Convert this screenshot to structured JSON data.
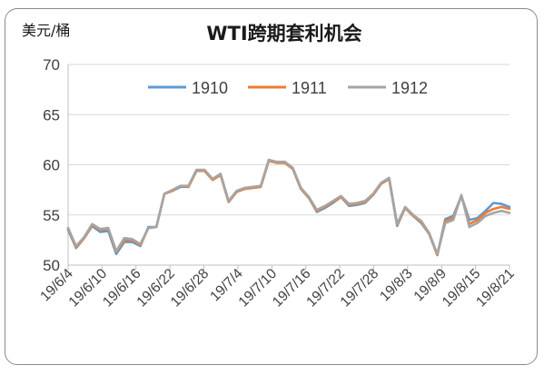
{
  "chart_data": {
    "type": "line",
    "title": "WTI跨期套利机会",
    "unit_label": "美元/桶",
    "xlabel": "",
    "ylabel": "",
    "ylim": [
      50,
      70
    ],
    "y_ticks": [
      "50",
      "55",
      "60",
      "65",
      "70"
    ],
    "grid": "horizontal",
    "legend_position": "top-center",
    "x_tick_labels": [
      "19/6/4",
      "19/6/10",
      "19/6/16",
      "19/6/22",
      "19/6/28",
      "19/7/4",
      "19/7/10",
      "19/7/16",
      "19/7/22",
      "19/7/28",
      "19/8/3",
      "19/8/9",
      "19/8/15",
      "19/8/21"
    ],
    "x": [
      "19/6/4",
      "19/6/5",
      "19/6/6",
      "19/6/7",
      "19/6/10",
      "19/6/11",
      "19/6/12",
      "19/6/13",
      "19/6/14",
      "19/6/17",
      "19/6/18",
      "19/6/19",
      "19/6/20",
      "19/6/21",
      "19/6/24",
      "19/6/25",
      "19/6/26",
      "19/6/27",
      "19/6/28",
      "19/7/1",
      "19/7/2",
      "19/7/3",
      "19/7/5",
      "19/7/8",
      "19/7/9",
      "19/7/10",
      "19/7/11",
      "19/7/12",
      "19/7/15",
      "19/7/16",
      "19/7/17",
      "19/7/18",
      "19/7/19",
      "19/7/22",
      "19/7/23",
      "19/7/24",
      "19/7/25",
      "19/7/26",
      "19/7/29",
      "19/7/30",
      "19/7/31",
      "19/8/1",
      "19/8/2",
      "19/8/5",
      "19/8/6",
      "19/8/7",
      "19/8/8",
      "19/8/9",
      "19/8/12",
      "19/8/13",
      "19/8/14",
      "19/8/15",
      "19/8/16",
      "19/8/19",
      "19/8/20",
      "19/8/21"
    ],
    "series": [
      {
        "name": "1910",
        "color": "#5b9bd5",
        "values": [
          53.5,
          51.7,
          52.7,
          53.9,
          53.3,
          53.4,
          51.1,
          52.3,
          52.3,
          51.9,
          53.8,
          53.8,
          57.1,
          57.4,
          57.8,
          57.8,
          59.4,
          59.4,
          58.5,
          59.0,
          56.3,
          57.3,
          57.6,
          57.7,
          57.8,
          60.4,
          60.2,
          60.2,
          59.6,
          57.6,
          56.7,
          55.3,
          55.7,
          56.2,
          56.8,
          55.9,
          56.0,
          56.2,
          57.0,
          58.1,
          58.6,
          53.9,
          55.7,
          54.9,
          54.2,
          53.1,
          51.0,
          54.6,
          54.9,
          56.9,
          54.5,
          54.7,
          55.4,
          56.2,
          56.1,
          55.8
        ]
      },
      {
        "name": "1911",
        "color": "#ed7d31",
        "values": [
          53.6,
          51.8,
          52.7,
          54.0,
          53.5,
          53.6,
          51.3,
          52.5,
          52.5,
          52.0,
          53.7,
          53.8,
          57.1,
          57.4,
          57.9,
          57.8,
          59.4,
          59.4,
          58.5,
          59.0,
          56.3,
          57.3,
          57.6,
          57.7,
          57.8,
          60.4,
          60.2,
          60.2,
          59.6,
          57.6,
          56.7,
          55.4,
          55.8,
          56.3,
          56.8,
          56.0,
          56.1,
          56.3,
          57.0,
          58.1,
          58.6,
          54.0,
          55.7,
          54.9,
          54.3,
          53.1,
          51.0,
          54.4,
          54.7,
          56.9,
          54.1,
          54.5,
          55.2,
          55.6,
          55.8,
          55.6
        ]
      },
      {
        "name": "1912",
        "color": "#a5a5a5",
        "values": [
          53.7,
          51.9,
          52.8,
          54.1,
          53.6,
          53.7,
          51.4,
          52.7,
          52.6,
          52.1,
          53.7,
          53.8,
          57.1,
          57.5,
          57.9,
          57.9,
          59.5,
          59.5,
          58.6,
          59.1,
          56.4,
          57.4,
          57.7,
          57.8,
          57.9,
          60.5,
          60.3,
          60.3,
          59.7,
          57.7,
          56.8,
          55.5,
          55.9,
          56.4,
          56.9,
          56.1,
          56.2,
          56.4,
          57.1,
          58.2,
          58.7,
          54.1,
          55.8,
          55.0,
          54.4,
          53.2,
          51.1,
          54.2,
          54.5,
          57.0,
          53.8,
          54.2,
          54.9,
          55.2,
          55.4,
          55.2
        ]
      }
    ]
  }
}
